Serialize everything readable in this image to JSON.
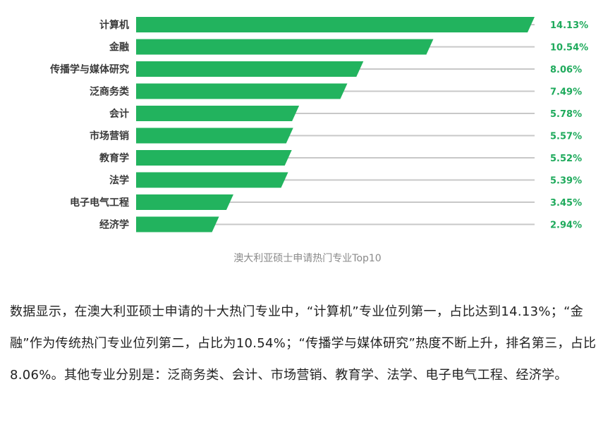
{
  "chart_data": {
    "type": "bar",
    "orientation": "horizontal",
    "categories": [
      "计算机",
      "金融",
      "传播学与媒体研究",
      "泛商务类",
      "会计",
      "市场营销",
      "教育学",
      "法学",
      "电子电气工程",
      "经济学"
    ],
    "values": [
      14.13,
      10.54,
      8.06,
      7.49,
      5.78,
      5.57,
      5.52,
      5.39,
      3.45,
      2.94
    ],
    "value_labels": [
      "14.13%",
      "10.54%",
      "8.06%",
      "7.49%",
      "5.78%",
      "5.57%",
      "5.52%",
      "5.39%",
      "3.45%",
      "2.94%"
    ],
    "bar_color": "#22b35e",
    "track_color": "#c8c8c8",
    "value_label_color": "#1faa5c",
    "xlim": [
      0,
      14.13
    ],
    "grid": false,
    "legend": "none"
  },
  "caption": "澳大利亚硕士申请热门专业Top10",
  "paragraph": "数据显示，在澳大利亚硕士申请的十大热门专业中，“计算机”专业位列第一，占比达到14.13%；“金融”作为传统热门专业位列第二，占比为10.54%；“传播学与媒体研究”热度不断上升，排名第三，占比8.06%。其他专业分别是：泛商务类、会计、市场营销、教育学、法学、电子电气工程、经济学。"
}
